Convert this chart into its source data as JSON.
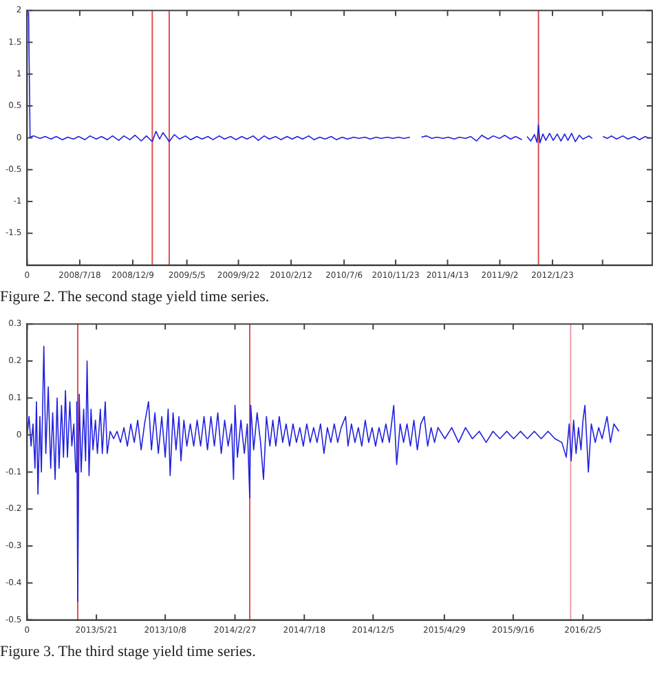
{
  "chart_data": [
    {
      "type": "line",
      "annotations": [
        "Figure 2. The second stage yield time series."
      ],
      "xlim": [
        "2008-02-26",
        "2012-10-20"
      ],
      "xticks": [
        {
          "value": "2008-02-26",
          "label": "0"
        },
        {
          "value": "2008-07-18",
          "label": "2008/7/18"
        },
        {
          "value": "2008-12-09",
          "label": "2008/12/9"
        },
        {
          "value": "2009-05-05",
          "label": "2009/5/5"
        },
        {
          "value": "2009-09-22",
          "label": "2009/9/22"
        },
        {
          "value": "2010-02-12",
          "label": "2010/2/12"
        },
        {
          "value": "2010-07-06",
          "label": "2010/7/6"
        },
        {
          "value": "2010-11-23",
          "label": "2010/11/23"
        },
        {
          "value": "2011-04-13",
          "label": "2011/4/13"
        },
        {
          "value": "2011-09-02",
          "label": "2011/9/2"
        },
        {
          "value": "2012-01-23",
          "label": "2012/1/23"
        },
        {
          "value": "2012-06-07",
          "label": null
        }
      ],
      "ylim": [
        -2,
        2
      ],
      "yticks": [
        -1.5,
        -1,
        -0.5,
        0,
        0.5,
        1,
        1.5,
        2
      ],
      "grid": false,
      "legend": false,
      "marker": "none",
      "line_style": "solid",
      "ref_lines": [
        {
          "axis": "x",
          "value": "2009-01-31",
          "color": "#e05050"
        },
        {
          "axis": "x",
          "value": "2009-03-18",
          "color": "#e05050"
        },
        {
          "axis": "x",
          "value": "2011-12-16",
          "color": "#e05050"
        }
      ],
      "series": [
        {
          "color": "#2020e0",
          "x": [
            "2008-03-01",
            "2008-03-05",
            "2008-03-15",
            "2008-04-01",
            "2008-04-15",
            "2008-05-01",
            "2008-05-15",
            "2008-06-01",
            "2008-06-15",
            "2008-07-01",
            "2008-07-15",
            "2008-08-01",
            "2008-08-15",
            "2008-09-01",
            "2008-09-15",
            "2008-10-01",
            "2008-10-15",
            "2008-11-01",
            "2008-11-15",
            "2008-12-01",
            "2008-12-15",
            "2009-01-01",
            "2009-01-15",
            "2009-01-31",
            "2009-02-10",
            "2009-02-20",
            "2009-03-01",
            "2009-03-10",
            "2009-03-18",
            "2009-04-01",
            "2009-04-15",
            "2009-05-01",
            "2009-05-15",
            "2009-06-01",
            "2009-06-15",
            "2009-07-01",
            "2009-07-15",
            "2009-08-01",
            "2009-08-15",
            "2009-09-01",
            "2009-09-15",
            "2009-10-01",
            "2009-10-15",
            "2009-11-01",
            "2009-11-15",
            "2009-12-01",
            "2009-12-15",
            "2010-01-01",
            "2010-01-15",
            "2010-02-01",
            "2010-02-15",
            "2010-03-01",
            "2010-03-15",
            "2010-04-01",
            "2010-04-15",
            "2010-05-01",
            "2010-05-15",
            "2010-06-01",
            "2010-06-15",
            "2010-07-01",
            "2010-07-15",
            "2010-08-01",
            "2010-08-15",
            "2010-09-01",
            "2010-09-15",
            "2010-10-01",
            "2010-10-15",
            "2010-11-01",
            "2010-11-15",
            "2010-12-01",
            "2010-12-15",
            "2011-01-01",
            "2011-01-15",
            "2011-02-01",
            "2011-02-15",
            "2011-03-01",
            "2011-03-15",
            "2011-04-01",
            "2011-04-15",
            "2011-05-01",
            "2011-05-15",
            "2011-06-01",
            "2011-06-15",
            "2011-07-01",
            "2011-07-15",
            "2011-08-01",
            "2011-08-15",
            "2011-09-01",
            "2011-09-15",
            "2011-10-01",
            "2011-10-15",
            "2011-11-01",
            "2011-11-08",
            "2011-11-15",
            "2011-11-25",
            "2011-12-05",
            "2011-12-12",
            "2011-12-16",
            "2011-12-20",
            "2011-12-28",
            "2012-01-05",
            "2012-01-15",
            "2012-01-25",
            "2012-02-05",
            "2012-02-15",
            "2012-02-25",
            "2012-03-05",
            "2012-03-15",
            "2012-03-25",
            "2012-04-05",
            "2012-04-15",
            "2012-05-01",
            "2012-05-10",
            "2012-05-25",
            "2012-06-08",
            "2012-06-20",
            "2012-07-01",
            "2012-07-15",
            "2012-08-01",
            "2012-08-15",
            "2012-09-01",
            "2012-09-15",
            "2012-10-01",
            "2012-10-12"
          ],
          "values": [
            1.98,
            0.01,
            0.03,
            -0.01,
            0.02,
            -0.02,
            0.02,
            -0.03,
            0.01,
            -0.02,
            0.02,
            -0.03,
            0.03,
            -0.02,
            0.02,
            -0.03,
            0.03,
            -0.04,
            0.03,
            -0.03,
            0.04,
            -0.05,
            0.03,
            -0.06,
            0.1,
            -0.02,
            0.08,
            0.01,
            -0.06,
            0.05,
            -0.02,
            0.03,
            -0.03,
            0.02,
            -0.02,
            0.02,
            -0.03,
            0.03,
            -0.02,
            0.02,
            -0.03,
            0.02,
            -0.02,
            0.03,
            -0.04,
            0.03,
            -0.02,
            0.02,
            -0.03,
            0.02,
            -0.02,
            0.02,
            -0.02,
            0.03,
            -0.03,
            0.01,
            -0.02,
            0.02,
            -0.03,
            0.01,
            -0.02,
            0.01,
            -0.01,
            0.01,
            -0.02,
            0.01,
            -0.01,
            0.01,
            -0.01,
            0.01,
            -0.01,
            0.01,
            null,
            0.01,
            0.03,
            -0.01,
            0.01,
            -0.01,
            0.01,
            -0.02,
            0.01,
            -0.01,
            0.02,
            -0.05,
            0.04,
            -0.02,
            0.03,
            -0.01,
            0.04,
            -0.02,
            0.02,
            -0.03,
            null,
            0.02,
            -0.05,
            0.05,
            -0.07,
            0.2,
            -0.08,
            0.06,
            -0.04,
            0.07,
            -0.04,
            0.06,
            -0.05,
            0.06,
            -0.04,
            0.07,
            -0.06,
            0.04,
            -0.02,
            0.03,
            -0.01,
            null,
            0.02,
            -0.01,
            0.03,
            -0.02,
            0.03,
            -0.02,
            0.02,
            -0.03,
            0.02,
            -0.01
          ]
        }
      ]
    },
    {
      "type": "line",
      "annotations": [
        "Figure 3. The third stage yield time series."
      ],
      "xlim": [
        "2012-12-31",
        "2016-06-25"
      ],
      "xticks": [
        {
          "value": "2012-12-31",
          "label": "0"
        },
        {
          "value": "2013-05-21",
          "label": "2013/5/21"
        },
        {
          "value": "2013-10-08",
          "label": "2013/10/8"
        },
        {
          "value": "2014-02-27",
          "label": "2014/2/27"
        },
        {
          "value": "2014-07-18",
          "label": "2014/7/18"
        },
        {
          "value": "2014-12-05",
          "label": "2014/12/5"
        },
        {
          "value": "2015-04-29",
          "label": "2015/4/29"
        },
        {
          "value": "2015-09-16",
          "label": "2015/9/16"
        },
        {
          "value": "2016-02-05",
          "label": "2016/2/5"
        }
      ],
      "ylim": [
        -0.5,
        0.3
      ],
      "yticks": [
        -0.5,
        -0.4,
        -0.3,
        -0.2,
        -0.1,
        0,
        0.1,
        0.2,
        0.3
      ],
      "grid": false,
      "legend": false,
      "marker": "none",
      "line_style": "solid",
      "ref_lines": [
        {
          "axis": "x",
          "value": "2013-04-13",
          "color": "#e05050"
        },
        {
          "axis": "x",
          "value": "2014-03-29",
          "color": "#e05050"
        },
        {
          "axis": "x",
          "value": "2016-01-11",
          "color": "#f0a0a8"
        }
      ],
      "series": [
        {
          "color": "#2020e0",
          "x": [
            "2012-12-31",
            "2013-01-04",
            "2013-01-08",
            "2013-01-12",
            "2013-01-16",
            "2013-01-19",
            "2013-01-22",
            "2013-01-26",
            "2013-01-29",
            "2013-02-03",
            "2013-02-07",
            "2013-02-12",
            "2013-02-17",
            "2013-02-21",
            "2013-02-26",
            "2013-03-02",
            "2013-03-06",
            "2013-03-11",
            "2013-03-15",
            "2013-03-19",
            "2013-03-23",
            "2013-03-28",
            "2013-04-01",
            "2013-04-05",
            "2013-04-09",
            "2013-04-11",
            "2013-04-13",
            "2013-04-16",
            "2013-04-20",
            "2013-04-25",
            "2013-04-29",
            "2013-05-02",
            "2013-05-06",
            "2013-05-10",
            "2013-05-14",
            "2013-05-19",
            "2013-05-23",
            "2013-05-29",
            "2013-06-02",
            "2013-06-08",
            "2013-06-12",
            "2013-06-18",
            "2013-06-25",
            "2013-07-02",
            "2013-07-09",
            "2013-07-16",
            "2013-07-23",
            "2013-07-30",
            "2013-08-06",
            "2013-08-13",
            "2013-08-20",
            "2013-08-27",
            "2013-09-04",
            "2013-09-10",
            "2013-09-17",
            "2013-09-24",
            "2013-10-01",
            "2013-10-08",
            "2013-10-14",
            "2013-10-18",
            "2013-10-24",
            "2013-10-30",
            "2013-11-05",
            "2013-11-09",
            "2013-11-15",
            "2013-11-21",
            "2013-11-28",
            "2013-12-05",
            "2013-12-12",
            "2013-12-19",
            "2013-12-26",
            "2014-01-02",
            "2014-01-09",
            "2014-01-16",
            "2014-01-23",
            "2014-01-30",
            "2014-02-06",
            "2014-02-13",
            "2014-02-20",
            "2014-02-24",
            "2014-02-27",
            "2014-03-04",
            "2014-03-11",
            "2014-03-18",
            "2014-03-24",
            "2014-03-29",
            "2014-03-31",
            "2014-04-06",
            "2014-04-13",
            "2014-04-20",
            "2014-04-26",
            "2014-05-02",
            "2014-05-09",
            "2014-05-15",
            "2014-05-21",
            "2014-05-28",
            "2014-06-04",
            "2014-06-11",
            "2014-06-18",
            "2014-06-25",
            "2014-07-02",
            "2014-07-09",
            "2014-07-16",
            "2014-07-23",
            "2014-07-30",
            "2014-08-06",
            "2014-08-13",
            "2014-08-20",
            "2014-08-27",
            "2014-09-03",
            "2014-09-10",
            "2014-09-17",
            "2014-09-24",
            "2014-10-01",
            "2014-10-10",
            "2014-10-15",
            "2014-10-22",
            "2014-10-29",
            "2014-11-05",
            "2014-11-12",
            "2014-11-19",
            "2014-11-26",
            "2014-12-03",
            "2014-12-10",
            "2014-12-17",
            "2014-12-24",
            "2014-12-31",
            "2015-01-07",
            "2015-01-16",
            "2015-01-22",
            "2015-01-29",
            "2015-02-05",
            "2015-02-12",
            "2015-02-19",
            "2015-02-26",
            "2015-03-05",
            "2015-03-12",
            "2015-03-19",
            "2015-03-26",
            "2015-04-02",
            "2015-04-09",
            "2015-04-16",
            "2015-04-30",
            "2015-05-14",
            "2015-05-28",
            "2015-06-11",
            "2015-06-25",
            "2015-07-09",
            "2015-07-23",
            "2015-08-06",
            "2015-08-20",
            "2015-09-03",
            "2015-09-17",
            "2015-10-01",
            "2015-10-15",
            "2015-10-29",
            "2015-11-12",
            "2015-11-26",
            "2015-12-10",
            "2015-12-24",
            "2016-01-02",
            "2016-01-08",
            "2016-01-12",
            "2016-01-17",
            "2016-01-22",
            "2016-01-27",
            "2016-02-01",
            "2016-02-05",
            "2016-02-09",
            "2016-02-13",
            "2016-02-16",
            "2016-02-22",
            "2016-03-01",
            "2016-03-08",
            "2016-03-15",
            "2016-03-25",
            "2016-04-01",
            "2016-04-08",
            "2016-04-18"
          ],
          "values": [
            0,
            0.05,
            -0.03,
            0.03,
            -0.09,
            0.09,
            -0.16,
            0.05,
            -0.1,
            0.24,
            -0.05,
            0.13,
            -0.09,
            0.06,
            -0.12,
            0.1,
            -0.09,
            0.08,
            -0.06,
            0.12,
            -0.06,
            0.09,
            -0.03,
            0.03,
            -0.1,
            0.09,
            -0.45,
            0.11,
            -0.1,
            0.07,
            -0.07,
            0.2,
            -0.11,
            0.07,
            -0.04,
            0.04,
            -0.05,
            0.07,
            -0.05,
            0.09,
            -0.05,
            0.01,
            -0.01,
            0.01,
            -0.02,
            0.02,
            -0.03,
            0.03,
            -0.02,
            0.04,
            -0.04,
            0.03,
            0.09,
            -0.04,
            0.06,
            -0.05,
            0.05,
            -0.06,
            0.07,
            -0.11,
            0.06,
            -0.04,
            0.05,
            -0.07,
            0.04,
            -0.03,
            0.03,
            -0.03,
            0.04,
            -0.03,
            0.05,
            -0.04,
            0.05,
            -0.03,
            0.06,
            -0.05,
            0.04,
            -0.03,
            0.03,
            -0.12,
            0.08,
            -0.06,
            0.04,
            -0.05,
            0.03,
            -0.17,
            0.08,
            -0.04,
            0.06,
            -0.02,
            -0.12,
            0.05,
            -0.03,
            0.04,
            -0.03,
            0.05,
            -0.02,
            0.03,
            -0.03,
            0.03,
            -0.02,
            0.02,
            -0.03,
            0.03,
            -0.02,
            0.02,
            -0.02,
            0.03,
            -0.05,
            0.02,
            -0.02,
            0.03,
            -0.02,
            0.02,
            0.05,
            -0.03,
            0.03,
            -0.02,
            0.02,
            -0.03,
            0.04,
            -0.02,
            0.02,
            -0.03,
            0.02,
            -0.02,
            0.03,
            -0.02,
            0.08,
            -0.08,
            0.03,
            -0.02,
            0.03,
            -0.03,
            0.04,
            -0.04,
            0.03,
            0.05,
            -0.03,
            0.02,
            -0.02,
            0.02,
            -0.01,
            0.02,
            -0.02,
            0.02,
            -0.01,
            0.01,
            -0.02,
            0.01,
            -0.01,
            0.01,
            -0.01,
            0.01,
            -0.01,
            0.01,
            -0.01,
            0.01,
            -0.01,
            -0.02,
            -0.06,
            0.03,
            -0.07,
            0.04,
            -0.05,
            0.02,
            -0.04,
            0.04,
            0.08,
            -0.02,
            -0.1,
            0.03,
            -0.02,
            0.02,
            -0.01,
            0.05,
            -0.02,
            0.03,
            0.01
          ]
        }
      ]
    }
  ]
}
